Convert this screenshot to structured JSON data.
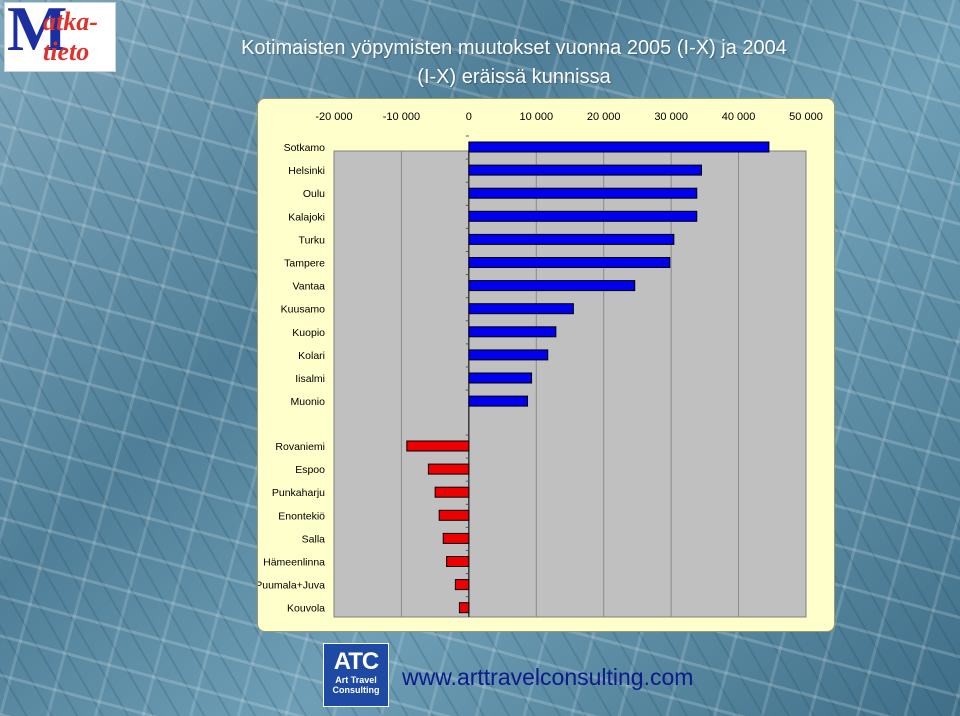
{
  "page": {
    "title_line1": "Kotimaisten yöpymisten muutokset vuonna 2005 (I-X) ja 2004",
    "title_line2": "(I-X) eräissä kunnissa",
    "logo": {
      "big_letter": "M",
      "line1": "atka-",
      "line2": "tieto"
    },
    "footer_logo": {
      "mark": "ATC",
      "line1": "Art Travel",
      "line2": "Consulting"
    },
    "website": "www.arttravelconsulting.com"
  },
  "colors": {
    "positive_bar": "#0000ee",
    "negative_bar": "#ee0000",
    "plot_background": "#c0c0c0",
    "panel_background": "#ffffcc"
  },
  "chart_data": {
    "type": "bar",
    "orientation": "horizontal",
    "title": "Kotimaisten yöpymisten muutokset vuonna 2005 (I-X) ja 2004 (I-X) eräissä kunnissa",
    "xlabel": "",
    "ylabel": "",
    "xlim": [
      -20000,
      50000
    ],
    "x_ticks": [
      -20000,
      -10000,
      0,
      10000,
      20000,
      30000,
      40000,
      50000
    ],
    "x_tick_labels": [
      "-20 000",
      "-10 000",
      "0",
      "10 000",
      "20 000",
      "30 000",
      "40 000",
      "50 000"
    ],
    "gridlines": "vertical",
    "legend": "none",
    "groups": [
      {
        "name": "positive",
        "categories": [
          "Sotkamo",
          "Helsinki",
          "Oulu",
          "Kalajoki",
          "Turku",
          "Tampere",
          "Vantaa",
          "Kuusamo",
          "Kuopio",
          "Kolari",
          "Iisalmi",
          "Muonio"
        ],
        "values": [
          44500,
          34500,
          33800,
          33800,
          30400,
          29800,
          24600,
          15500,
          12900,
          11700,
          9300,
          8700
        ]
      },
      {
        "name": "negative",
        "categories": [
          "Rovaniemi",
          "Espoo",
          "Punkaharju",
          "Enontekiö",
          "Salla",
          "Hämeenlinna",
          "Puumala+Juva",
          "Kouvola"
        ],
        "values": [
          -9200,
          -6000,
          -5000,
          -4400,
          -3800,
          -3300,
          -2000,
          -1400
        ]
      }
    ]
  }
}
